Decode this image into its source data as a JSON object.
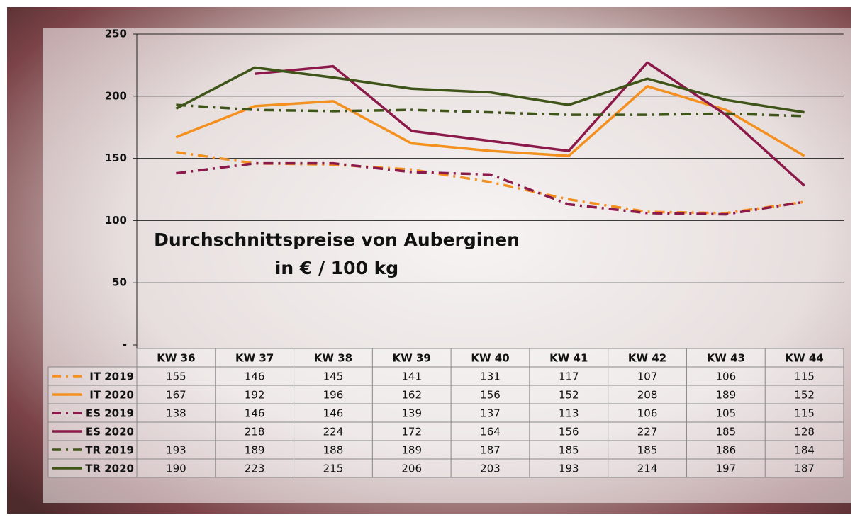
{
  "chart_data": {
    "type": "line",
    "title": "Durchschnittspreise von Auberginen",
    "subtitle": "in € / 100 kg",
    "categories": [
      "KW 36",
      "KW 37",
      "KW 38",
      "KW 39",
      "KW 40",
      "KW 41",
      "KW 42",
      "KW 43",
      "KW 44"
    ],
    "series": [
      {
        "name": "IT 2019",
        "color": "#f39020",
        "dashed": true,
        "values": [
          155,
          146,
          145,
          141,
          131,
          117,
          107,
          106,
          115
        ]
      },
      {
        "name": "IT 2020",
        "color": "#f39020",
        "dashed": false,
        "values": [
          167,
          192,
          196,
          162,
          156,
          152,
          208,
          189,
          152
        ]
      },
      {
        "name": "ES 2019",
        "color": "#8b1a4a",
        "dashed": true,
        "values": [
          138,
          146,
          146,
          139,
          137,
          113,
          106,
          105,
          115
        ]
      },
      {
        "name": "ES 2020",
        "color": "#8b1a4a",
        "dashed": false,
        "values": [
          null,
          218,
          224,
          172,
          164,
          156,
          227,
          185,
          128
        ]
      },
      {
        "name": "TR 2019",
        "color": "#3f5418",
        "dashed": true,
        "values": [
          193,
          189,
          188,
          189,
          187,
          185,
          185,
          186,
          184
        ]
      },
      {
        "name": "TR 2020",
        "color": "#3f5418",
        "dashed": false,
        "values": [
          190,
          223,
          215,
          206,
          203,
          193,
          214,
          197,
          187
        ]
      }
    ],
    "ylim": [
      0,
      250
    ],
    "yticks": [
      {
        "value": 0,
        "label": "-"
      },
      50,
      100,
      150,
      200,
      250
    ],
    "grid": true
  }
}
